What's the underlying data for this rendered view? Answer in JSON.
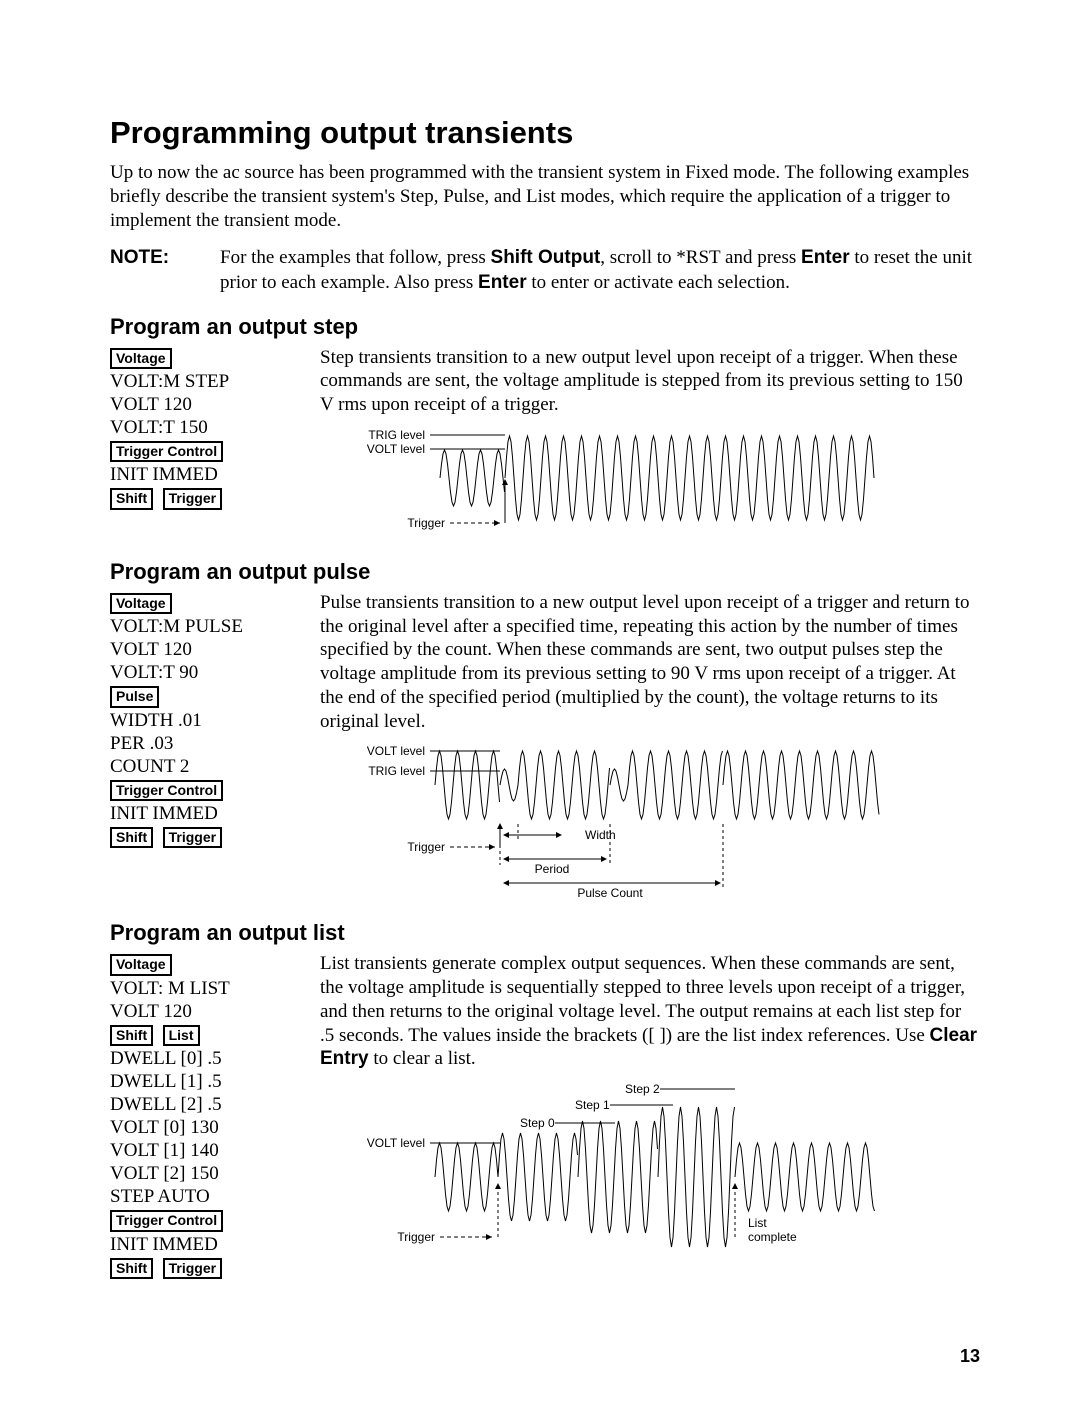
{
  "title": "Programming output transients",
  "intro": "Up to now the ac source has been programmed with the transient system in Fixed mode. The following examples briefly describe the transient system's Step, Pulse, and List modes, which require the application of a trigger to implement the transient mode.",
  "note_label": "NOTE:",
  "note_pre": "For the examples that follow, press ",
  "note_b1": "Shift Output",
  "note_mid1": ", scroll to *RST and press ",
  "note_b2": "Enter",
  "note_mid2": " to reset the unit prior to each example. Also press ",
  "note_b3": "Enter",
  "note_post": " to enter or activate each selection.",
  "step": {
    "heading": "Program an output step",
    "keys": {
      "voltage": "Voltage",
      "trigger_control": "Trigger Control",
      "shift": "Shift",
      "trigger": "Trigger"
    },
    "lines": {
      "l1": "VOLT:M STEP",
      "l2": "VOLT 120",
      "l3": "VOLT:T 150",
      "l4": "INIT IMMED"
    },
    "para": "Step transients transition to a new output level upon receipt of a trigger. When these commands are sent, the voltage amplitude is stepped from its  previous setting to 150 V rms upon receipt of a trigger.",
    "labels": {
      "trig_level": "TRIG level",
      "volt_level": "VOLT level",
      "trigger": "Trigger"
    }
  },
  "pulse": {
    "heading": "Program an output pulse",
    "keys": {
      "voltage": "Voltage",
      "pulse": "Pulse",
      "trigger_control": "Trigger Control",
      "shift": "Shift",
      "trigger": "Trigger"
    },
    "lines": {
      "l1": "VOLT:M PULSE",
      "l2": "VOLT 120",
      "l3": "VOLT:T 90",
      "l4": "WIDTH .01",
      "l5": "PER .03",
      "l6": "COUNT 2",
      "l7": "INIT IMMED"
    },
    "para": "Pulse transients transition to a new output level upon receipt of a trigger and return to the original level after a specified time, repeating this action by the number of times specified by the count. When these commands are sent, two output pulses step the voltage amplitude from its previous setting to 90 V rms upon receipt of a trigger. At the end of the specified period (multiplied by the count), the voltage returns to its original level.",
    "labels": {
      "volt_level": "VOLT level",
      "trig_level": "TRIG level",
      "trigger": "Trigger",
      "width": "Width",
      "period": "Period",
      "pulse_count": "Pulse Count"
    }
  },
  "list": {
    "heading": "Program an output list",
    "keys": {
      "voltage": "Voltage",
      "shift": "Shift",
      "list": "List",
      "trigger_control": "Trigger Control",
      "trigger": "Trigger"
    },
    "lines": {
      "l1": "VOLT: M LIST",
      "l2": "VOLT 120",
      "l3": "DWELL [0] .5",
      "l4": "DWELL [1] .5",
      "l5": "DWELL [2] .5",
      "l6": "VOLT [0] 130",
      "l7": "VOLT [1] 140",
      "l8": "VOLT [2] 150",
      "l9": "STEP AUTO",
      "l10": "INIT IMMED"
    },
    "para_pre": "List transients generate complex output sequences. When these commands are sent, the voltage amplitude is sequentially stepped to three levels upon receipt of a trigger, and then returns to the original voltage level. The output remains at each list step for .5 seconds. The values inside the brackets ([ ]) are the list index references. Use ",
    "para_b": "Clear Entry",
    "para_post": " to clear a list.",
    "labels": {
      "volt_level": "VOLT level",
      "trigger": "Trigger",
      "step0": "Step 0",
      "step1": "Step 1",
      "step2": "Step 2",
      "list_complete1": "List",
      "list_complete2": "complete"
    }
  },
  "page_number": "13",
  "style": {
    "wave_stroke": "#000",
    "label_font": 12
  }
}
